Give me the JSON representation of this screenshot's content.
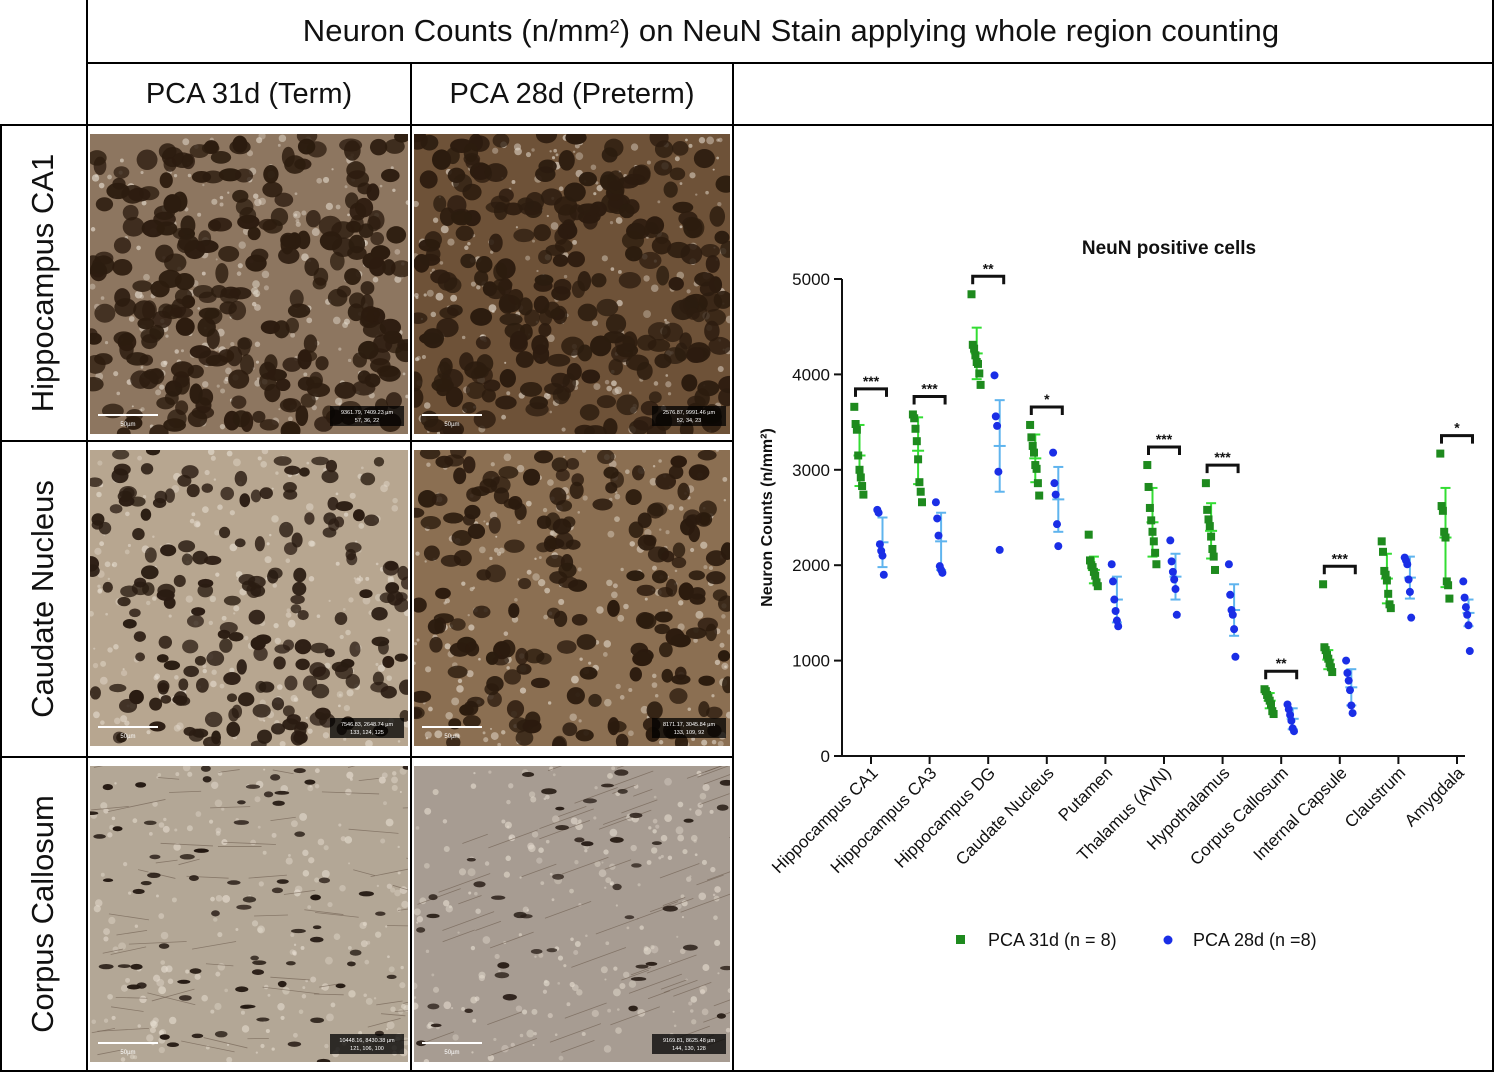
{
  "figure": {
    "title_prefix": "Neuron Counts (n/mm",
    "title_sup": "2",
    "title_suffix": ") on NeuN Stain applying whole region counting",
    "columns": [
      "PCA 31d (Term)",
      "PCA 28d (Preterm)"
    ],
    "rows": [
      "Hippocampus CA1",
      "Caudate Nucleus",
      "Corpus Callosum"
    ],
    "panels": [
      {
        "scale_label": "50µm",
        "coords": "9361.79, 7409.23 µm",
        "rgb": "57, 36, 22"
      },
      {
        "scale_label": "50µm",
        "coords": "2576.87, 9991.46 µm",
        "rgb": "52, 34, 23"
      },
      {
        "scale_label": "50µm",
        "coords": "7546.83, 2648.74 µm",
        "rgb": "133, 124, 125"
      },
      {
        "scale_label": "50µm",
        "coords": "8171.17, 3045.84 µm",
        "rgb": "133, 109, 92"
      },
      {
        "scale_label": "50µm",
        "coords": "10448.16, 8430.38 µm",
        "rgb": "121, 106, 100"
      },
      {
        "scale_label": "50µm",
        "coords": "9169.81, 8625.48 µm",
        "rgb": "144, 130, 128"
      }
    ]
  },
  "chart_data": {
    "type": "scatter",
    "title": "NeuN positive cells",
    "ylabel": "Neuron Counts (n/mm²)",
    "ylim": [
      0,
      5000
    ],
    "yticks": [
      0,
      1000,
      2000,
      3000,
      4000,
      5000
    ],
    "categories": [
      "Hippocampus CA1",
      "Hippocampus CA3",
      "Hippocampus DG",
      "Caudate Nucleus",
      "Putamen",
      "Thalamus (AVN)",
      "Hypothalamus",
      "Corpus Callosum",
      "Internal Capsule",
      "Claustrum",
      "Amygdala"
    ],
    "series": [
      {
        "name": "PCA 31d (n = 8)",
        "color": "#1e8a1e",
        "errorbar_color": "#33dd33",
        "marker": "square",
        "points": [
          [
            3660,
            3480,
            3420,
            3150,
            3000,
            2920,
            2830,
            2740
          ],
          [
            3580,
            3540,
            3430,
            3300,
            3110,
            2870,
            2770,
            2660
          ],
          [
            4840,
            4310,
            4270,
            4200,
            4130,
            4110,
            4010,
            3890
          ],
          [
            3470,
            3340,
            3250,
            3180,
            3050,
            3010,
            2860,
            2730
          ],
          [
            2320,
            2050,
            2000,
            1980,
            1930,
            1890,
            1820,
            1780
          ],
          [
            3050,
            2820,
            2600,
            2470,
            2350,
            2250,
            2130,
            2010
          ],
          [
            2860,
            2580,
            2480,
            2410,
            2300,
            2170,
            2090,
            1950
          ],
          [
            700,
            680,
            640,
            610,
            580,
            540,
            470,
            440
          ],
          [
            1800,
            1140,
            1110,
            1060,
            1020,
            970,
            930,
            880
          ],
          [
            2250,
            2140,
            1940,
            1900,
            1840,
            1700,
            1590,
            1550
          ],
          [
            3170,
            2620,
            2570,
            2350,
            2290,
            1830,
            1790,
            1650
          ]
        ],
        "mean": [
          3150,
          3200,
          4220,
          3120,
          1950,
          2450,
          2360,
          580,
          1010,
          1860,
          2290
        ],
        "sd": [
          320,
          350,
          270,
          250,
          140,
          360,
          290,
          80,
          100,
          260,
          520
        ]
      },
      {
        "name": "PCA 28d (n =8)",
        "color": "#1a2ee6",
        "errorbar_color": "#5fb4ee",
        "marker": "circle",
        "points": [
          [
            2580,
            2550,
            2220,
            2150,
            2100,
            1900
          ],
          [
            2660,
            2490,
            2310,
            1990,
            1950,
            1920
          ],
          [
            3990,
            3560,
            3460,
            2980,
            2160
          ],
          [
            3180,
            2860,
            2740,
            2430,
            2200
          ],
          [
            2010,
            1830,
            1640,
            1520,
            1420,
            1360
          ],
          [
            2260,
            2040,
            1930,
            1850,
            1750,
            1480
          ],
          [
            2010,
            1690,
            1530,
            1480,
            1330,
            1040
          ],
          [
            540,
            490,
            430,
            370,
            290,
            260
          ],
          [
            1000,
            870,
            790,
            690,
            530,
            450
          ],
          [
            2080,
            2050,
            2010,
            1850,
            1720,
            1450
          ],
          [
            1830,
            1660,
            1560,
            1480,
            1370,
            1100
          ]
        ],
        "mean": [
          2240,
          2250,
          3250,
          2690,
          1640,
          1880,
          1530,
          390,
          720,
          1870,
          1500
        ],
        "sd": [
          260,
          300,
          480,
          340,
          240,
          240,
          270,
          110,
          190,
          220,
          140
        ]
      }
    ],
    "significance": [
      {
        "category": "Hippocampus CA1",
        "stars": "***"
      },
      {
        "category": "Hippocampus CA3",
        "stars": "***"
      },
      {
        "category": "Hippocampus DG",
        "stars": "**"
      },
      {
        "category": "Caudate Nucleus",
        "stars": "*"
      },
      {
        "category": "Thalamus (AVN)",
        "stars": "***"
      },
      {
        "category": "Hypothalamus",
        "stars": "***"
      },
      {
        "category": "Corpus Callosum",
        "stars": "**"
      },
      {
        "category": "Internal Capsule",
        "stars": "***"
      },
      {
        "category": "Amygdala",
        "stars": "*"
      }
    ],
    "legend_position": "bottom"
  }
}
